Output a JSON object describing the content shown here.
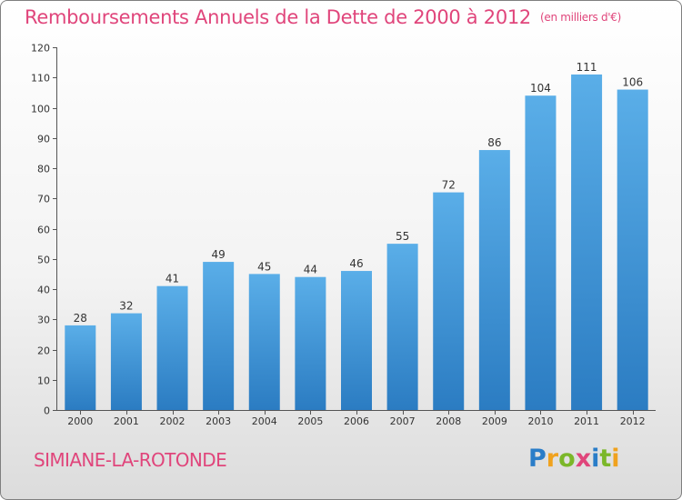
{
  "title": "Remboursements Annuels de la Dette de 2000 à 2012",
  "unit": "(en milliers d'€)",
  "commune": "SIMIANE-LA-ROTONDE",
  "logo": {
    "p": "P",
    "r": "r",
    "o": "o",
    "x": "x",
    "i": "i",
    "t": "t",
    "i2": "i"
  },
  "colors": {
    "bar_top": "#5aaee8",
    "bar_bottom": "#2b7cc2",
    "title": "#e0457b"
  },
  "chart_data": {
    "type": "bar",
    "categories": [
      "2000",
      "2001",
      "2002",
      "2003",
      "2004",
      "2005",
      "2006",
      "2007",
      "2008",
      "2009",
      "2010",
      "2011",
      "2012"
    ],
    "values": [
      28,
      32,
      41,
      49,
      45,
      44,
      46,
      55,
      72,
      86,
      104,
      111,
      106
    ],
    "ylim": [
      0,
      120
    ],
    "yticks": [
      0,
      10,
      20,
      30,
      40,
      50,
      60,
      70,
      80,
      90,
      100,
      110,
      120
    ],
    "grid": false,
    "data_labels": true
  }
}
